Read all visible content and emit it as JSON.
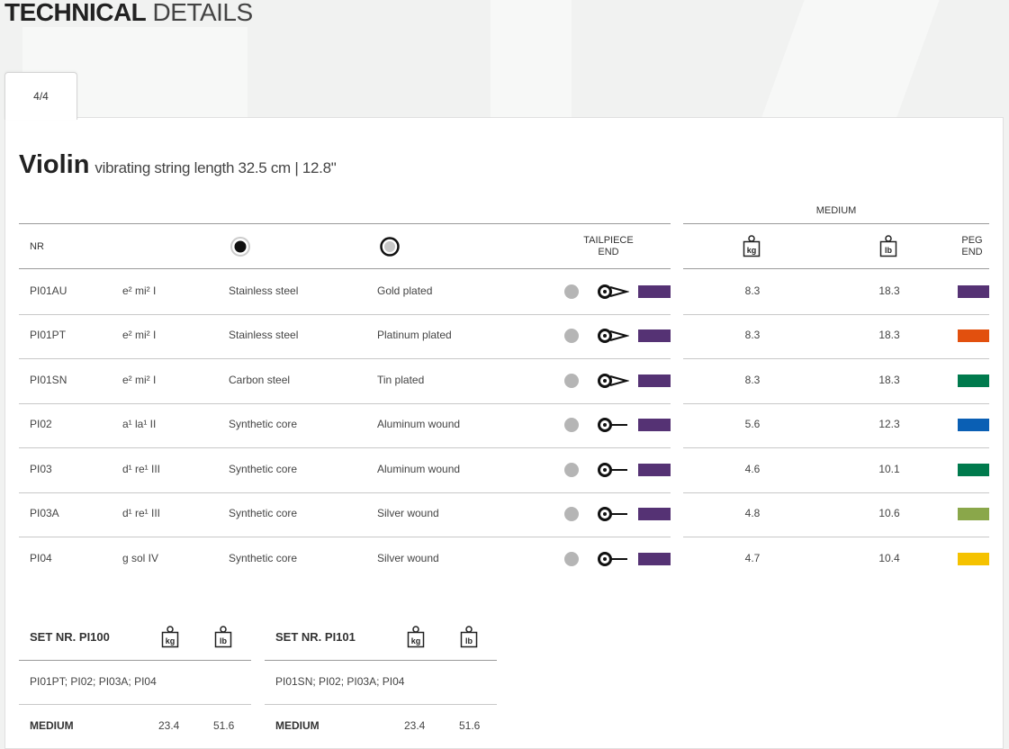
{
  "page": {
    "title_bold": "TECHNICAL",
    "title_light": "DETAILS"
  },
  "tabs": [
    {
      "label": "4/4"
    }
  ],
  "instrument": {
    "name": "Violin",
    "description": "vibrating string length 32.5 cm | 12.8\""
  },
  "table": {
    "tension_group": "MEDIUM",
    "headers": {
      "nr": "NR",
      "tailpiece_line1": "TAILPIECE",
      "tailpiece_line2": "END",
      "kg_unit": "kg",
      "lb_unit": "lb",
      "peg_line1": "PEG",
      "peg_line2": "END"
    },
    "rows": [
      {
        "nr": "PI01AU",
        "note": "e²  mi²  I",
        "core": "Stainless steel",
        "winding": "Gold plated",
        "end": "loop",
        "kg": "8.3",
        "lb": "18.3",
        "peg_color": "#553274"
      },
      {
        "nr": "PI01PT",
        "note": "e²  mi²  I",
        "core": "Stainless steel",
        "winding": "Platinum plated",
        "end": "loop",
        "kg": "8.3",
        "lb": "18.3",
        "peg_color": "#e2500e"
      },
      {
        "nr": "PI01SN",
        "note": "e²  mi²  I",
        "core": "Carbon steel",
        "winding": "Tin plated",
        "end": "loop",
        "kg": "8.3",
        "lb": "18.3",
        "peg_color": "#007a4d"
      },
      {
        "nr": "PI02",
        "note": "a¹  la¹  II",
        "core": "Synthetic core",
        "winding": "Aluminum wound",
        "end": "ball",
        "kg": "5.6",
        "lb": "12.3",
        "peg_color": "#0a5fb4"
      },
      {
        "nr": "PI03",
        "note": "d¹  re¹  III",
        "core": "Synthetic core",
        "winding": "Aluminum wound",
        "end": "ball",
        "kg": "4.6",
        "lb": "10.1",
        "peg_color": "#007a4d"
      },
      {
        "nr": "PI03A",
        "note": "d¹  re¹  III",
        "core": "Synthetic core",
        "winding": "Silver wound",
        "end": "ball",
        "kg": "4.8",
        "lb": "10.6",
        "peg_color": "#8aa74a"
      },
      {
        "nr": "PI04",
        "note": "g  sol  IV",
        "core": "Synthetic core",
        "winding": "Silver wound",
        "end": "ball",
        "kg": "4.7",
        "lb": "10.4",
        "peg_color": "#f5c200"
      }
    ],
    "tail_color": "#553274"
  },
  "sets": [
    {
      "label": "SET NR. PI100",
      "strings": "PI01PT; PI02; PI03A; PI04",
      "tension": "MEDIUM",
      "kg": "23.4",
      "lb": "51.6"
    },
    {
      "label": "SET NR. PI101",
      "strings": "PI01SN; PI02; PI03A; PI04",
      "tension": "MEDIUM",
      "kg": "23.4",
      "lb": "51.6"
    }
  ]
}
